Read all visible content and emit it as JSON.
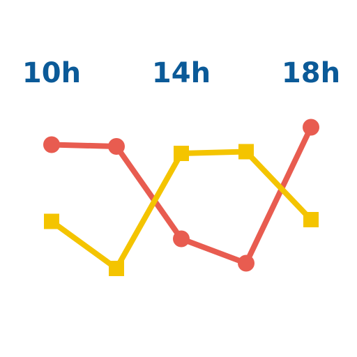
{
  "chart_data": {
    "type": "line",
    "x": [
      10,
      12,
      14,
      16,
      18
    ],
    "xlim": [
      10,
      18
    ],
    "xticks": [
      {
        "value": 10,
        "label": "10h"
      },
      {
        "value": 14,
        "label": "14h"
      },
      {
        "value": 18,
        "label": "18h"
      }
    ],
    "ylim": [
      0,
      10
    ],
    "tick_color": "#0b5a98",
    "series": [
      {
        "color": "#e85c50",
        "marker": "circle",
        "values": [
          8.5,
          8.4,
          3.1,
          1.7,
          9.5
        ]
      },
      {
        "color": "#f4c400",
        "marker": "square",
        "values": [
          4.1,
          1.4,
          8.0,
          8.1,
          4.2
        ]
      }
    ]
  }
}
